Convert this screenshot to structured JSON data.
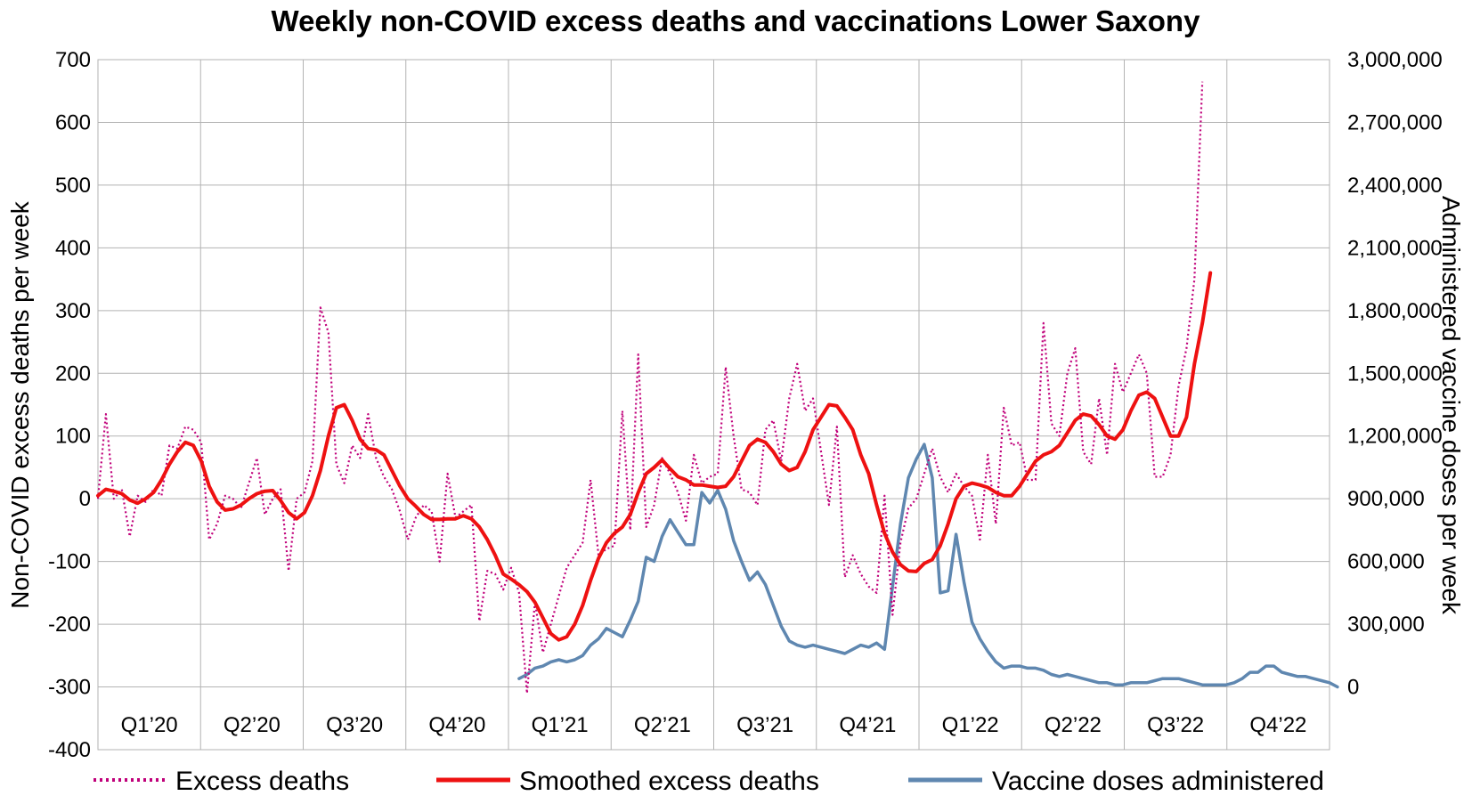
{
  "chart_data": {
    "type": "line",
    "title": "Weekly non-COVID excess deaths and vaccinations Lower Saxony",
    "ylabel_left": "Non-COVID excess deaths per week",
    "ylabel_right": "Administered vaccine doses per week",
    "ylim_left": [
      -400,
      700
    ],
    "ylim_right": [
      -300000,
      3000000
    ],
    "yticks_left": [
      "700",
      "600",
      "500",
      "400",
      "300",
      "200",
      "100",
      "0",
      "-100",
      "-200",
      "-300",
      "-400"
    ],
    "yticks_right": [
      "3,000,000",
      "2,700,000",
      "2,400,000",
      "2,100,000",
      "1,800,000",
      "1,500,000",
      "1,200,000",
      "900,000",
      "600,000",
      "300,000",
      "0"
    ],
    "quarters": [
      "Q1’20",
      "Q2’20",
      "Q3’20",
      "Q4’20",
      "Q1’21",
      "Q2’21",
      "Q3’21",
      "Q4’21",
      "Q1’22",
      "Q2’22",
      "Q3’22",
      "Q4’22"
    ],
    "grid": true,
    "legend_position": "bottom",
    "series": [
      {
        "name": "Excess deaths",
        "color": "#c0007a",
        "style": "dotted",
        "axis": "left",
        "week_start": 0,
        "values": [
          0,
          135,
          0,
          15,
          -60,
          5,
          -5,
          15,
          5,
          85,
          80,
          115,
          110,
          90,
          -65,
          -40,
          5,
          0,
          -15,
          25,
          65,
          -25,
          0,
          15,
          -115,
          0,
          10,
          60,
          305,
          265,
          55,
          25,
          85,
          65,
          135,
          65,
          35,
          15,
          -20,
          -65,
          -30,
          -10,
          -20,
          -100,
          40,
          -30,
          -20,
          -10,
          -195,
          -115,
          -120,
          -145,
          -110,
          -150,
          -310,
          -165,
          -245,
          -200,
          -155,
          -110,
          -90,
          -70,
          30,
          -90,
          -80,
          -75,
          140,
          -50,
          230,
          -45,
          -10,
          65,
          40,
          10,
          -35,
          70,
          25,
          35,
          40,
          210,
          100,
          15,
          10,
          -10,
          110,
          125,
          60,
          160,
          215,
          140,
          160,
          75,
          -10,
          115,
          -125,
          -90,
          -120,
          -140,
          -150,
          5,
          -185,
          -70,
          -15,
          0,
          40,
          80,
          35,
          10,
          40,
          20,
          5,
          -65,
          70,
          -40,
          145,
          85,
          90,
          30,
          30,
          280,
          120,
          100,
          200,
          240,
          75,
          55,
          160,
          70,
          215,
          170,
          200,
          230,
          200,
          35,
          35,
          70,
          180,
          240,
          350,
          665
        ]
      },
      {
        "name": "Smoothed excess deaths",
        "color": "#ee1111",
        "style": "solid",
        "axis": "left",
        "week_start": 0,
        "values": [
          5,
          15,
          12,
          8,
          -2,
          -7,
          0,
          10,
          30,
          55,
          75,
          90,
          85,
          60,
          20,
          -5,
          -18,
          -16,
          -10,
          0,
          8,
          12,
          13,
          -3,
          -22,
          -32,
          -22,
          5,
          45,
          100,
          145,
          150,
          125,
          95,
          80,
          78,
          70,
          45,
          20,
          0,
          -12,
          -25,
          -33,
          -33,
          -32,
          -32,
          -27,
          -32,
          -45,
          -65,
          -90,
          -120,
          -128,
          -137,
          -148,
          -165,
          -190,
          -215,
          -225,
          -220,
          -200,
          -170,
          -130,
          -95,
          -70,
          -55,
          -45,
          -25,
          10,
          40,
          50,
          62,
          48,
          35,
          30,
          22,
          22,
          20,
          18,
          20,
          35,
          60,
          85,
          95,
          90,
          75,
          55,
          45,
          50,
          75,
          110,
          130,
          150,
          148,
          130,
          110,
          70,
          40,
          -10,
          -55,
          -85,
          -105,
          -115,
          -116,
          -103,
          -97,
          -75,
          -40,
          0,
          20,
          25,
          22,
          18,
          10,
          5,
          5,
          20,
          40,
          60,
          70,
          75,
          85,
          105,
          125,
          135,
          132,
          118,
          100,
          95,
          110,
          140,
          165,
          170,
          160,
          130,
          100,
          100,
          130,
          215,
          280,
          360
        ]
      },
      {
        "name": "Vaccine doses administered",
        "color": "#5f87b0",
        "style": "solid",
        "axis": "right",
        "week_start": 53,
        "values": [
          40000,
          60000,
          90000,
          100000,
          120000,
          130000,
          120000,
          130000,
          150000,
          200000,
          230000,
          280000,
          260000,
          240000,
          320000,
          410000,
          620000,
          600000,
          720000,
          800000,
          740000,
          680000,
          680000,
          930000,
          880000,
          940000,
          850000,
          700000,
          600000,
          510000,
          550000,
          490000,
          390000,
          290000,
          220000,
          200000,
          190000,
          200000,
          190000,
          180000,
          170000,
          160000,
          180000,
          200000,
          190000,
          210000,
          180000,
          480000,
          780000,
          1000000,
          1090000,
          1160000,
          1000000,
          450000,
          460000,
          730000,
          500000,
          310000,
          230000,
          170000,
          120000,
          90000,
          100000,
          100000,
          90000,
          90000,
          80000,
          60000,
          50000,
          60000,
          50000,
          40000,
          30000,
          20000,
          20000,
          10000,
          10000,
          20000,
          20000,
          20000,
          30000,
          40000,
          40000,
          40000,
          30000,
          20000,
          10000,
          10000,
          10000,
          10000,
          20000,
          40000,
          70000,
          70000,
          100000,
          100000,
          70000,
          60000,
          50000,
          50000,
          40000,
          30000,
          20000,
          0
        ]
      }
    ]
  }
}
